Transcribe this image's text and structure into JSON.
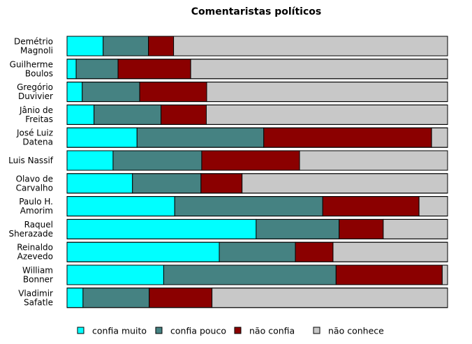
{
  "chart_data": {
    "type": "bar",
    "orientation": "horizontal",
    "stacked": true,
    "normalized": true,
    "title": "Comentaristas políticos",
    "categories": [
      [
        "Demétrio",
        "Magnoli"
      ],
      [
        "Guilherme",
        "Boulos"
      ],
      [
        "Gregório",
        "Duvivier"
      ],
      [
        "Jânio de",
        "Freitas"
      ],
      [
        "José Luiz",
        "Datena"
      ],
      [
        "Luis Nassif"
      ],
      [
        "Olavo de",
        "Carvalho"
      ],
      [
        "Paulo H.",
        "Amorim"
      ],
      [
        "Raquel",
        "Sherazade"
      ],
      [
        "Reinaldo",
        "Azevedo"
      ],
      [
        "William",
        "Bonner"
      ],
      [
        "Vladimir",
        "Safatle"
      ]
    ],
    "series": [
      {
        "name": "confia muito",
        "color": "#00ffff",
        "values": [
          9.5,
          2.4,
          4.0,
          7.1,
          18.4,
          12.1,
          17.2,
          28.3,
          49.7,
          40.0,
          25.4,
          4.2
        ]
      },
      {
        "name": "confia pouco",
        "color": "#458282",
        "values": [
          11.9,
          11.0,
          15.1,
          17.6,
          33.3,
          23.3,
          18.0,
          38.9,
          21.8,
          20.0,
          45.3,
          17.4
        ]
      },
      {
        "name": "não confia",
        "color": "#8b0000",
        "values": [
          6.6,
          19.1,
          17.6,
          11.9,
          44.1,
          25.7,
          10.8,
          25.3,
          11.6,
          9.9,
          27.9,
          16.5
        ]
      },
      {
        "name": "não conhece",
        "color": "#c8c8c8",
        "values": [
          72.0,
          67.5,
          63.3,
          63.4,
          4.2,
          38.9,
          54.0,
          7.5,
          16.9,
          30.1,
          1.4,
          61.9
        ]
      }
    ],
    "xlim": [
      0,
      100
    ],
    "legend_position": "bottom",
    "grid": false
  }
}
